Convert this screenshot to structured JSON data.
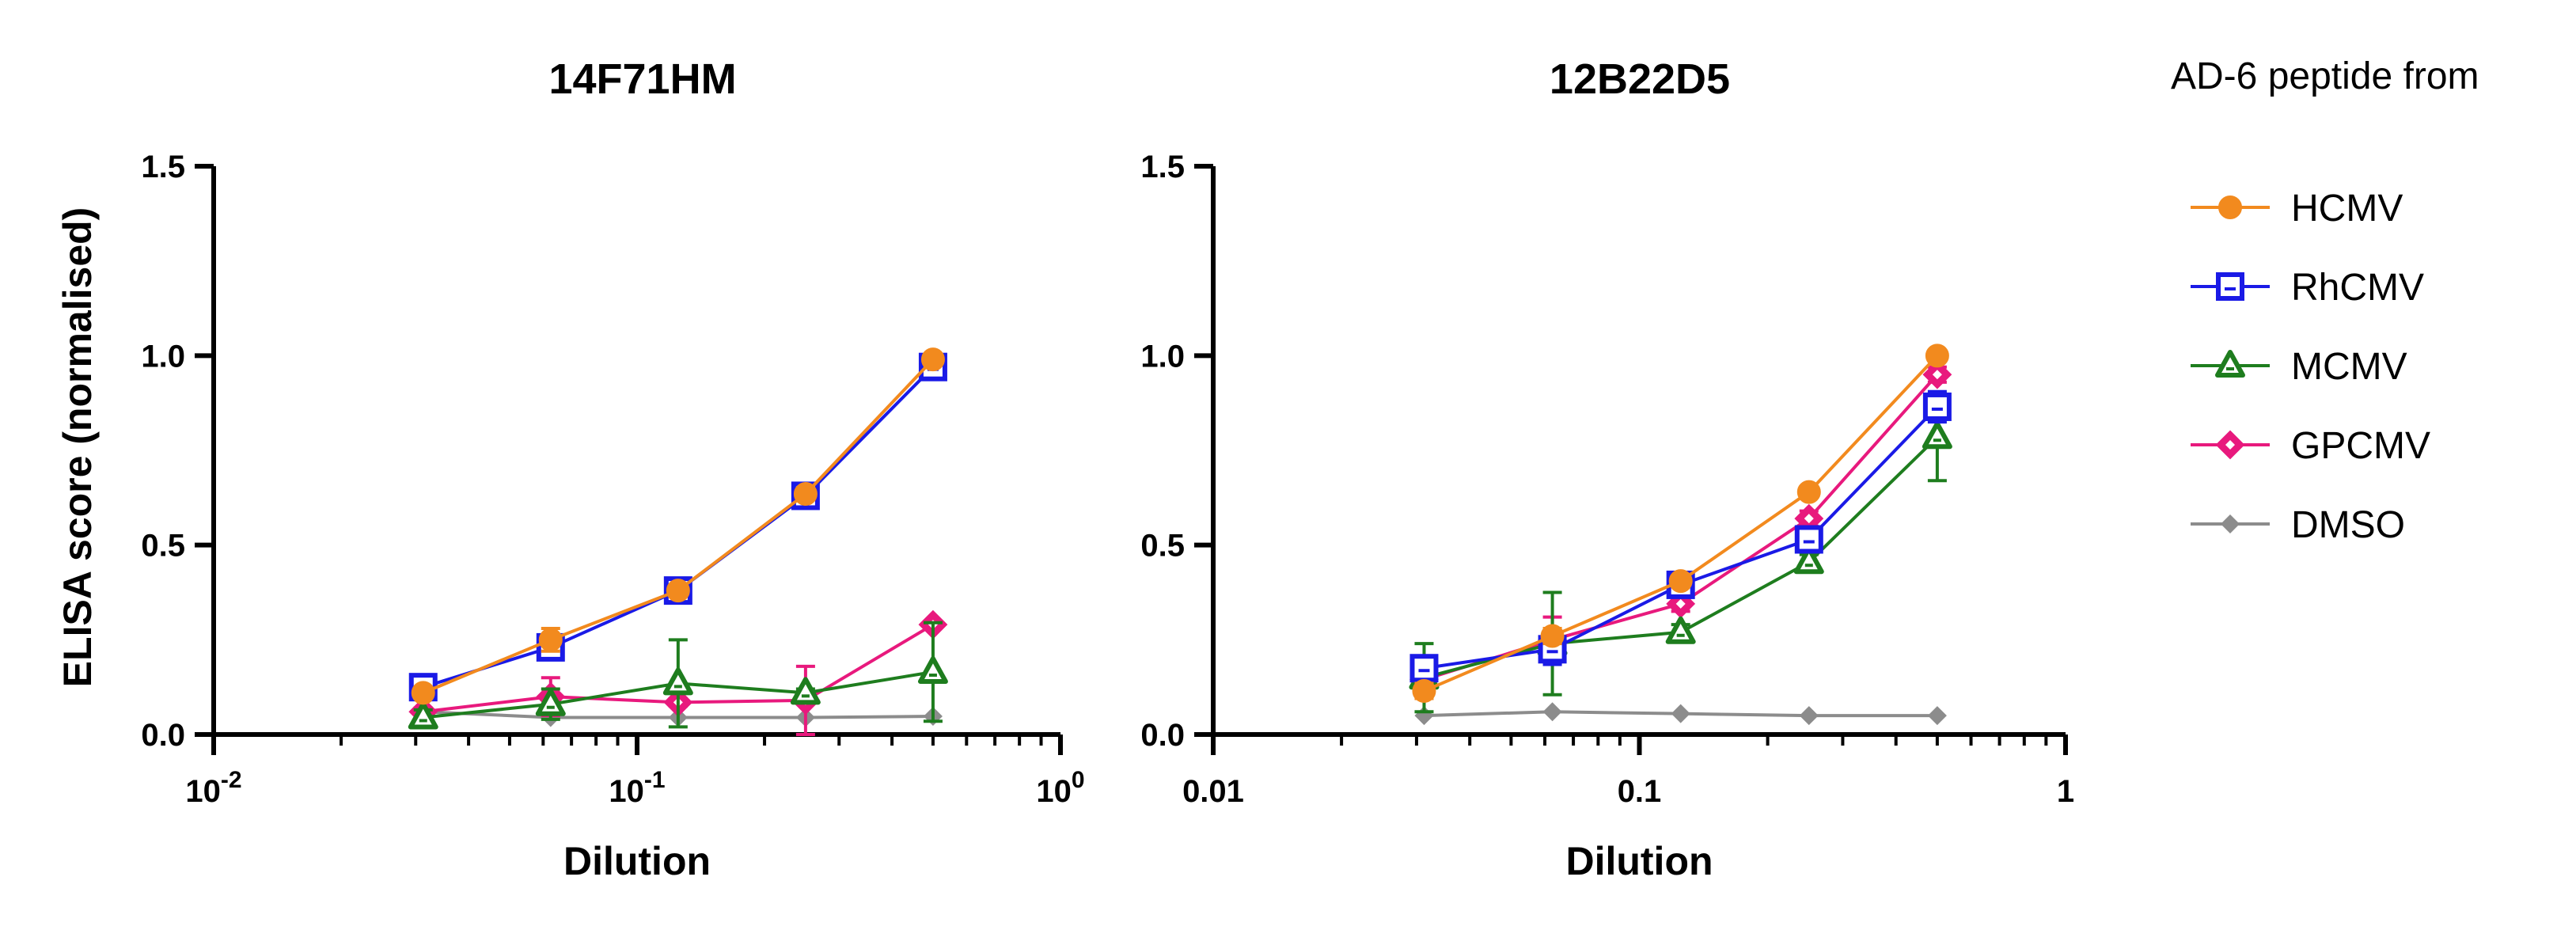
{
  "y_axis_label": "ELISA score (normalised)",
  "legend": {
    "title": "AD-6 peptide from",
    "entries": [
      {
        "name": "HCMV",
        "color": "#F28A1E",
        "marker": "circle"
      },
      {
        "name": "RhCMV",
        "color": "#1A1AE6",
        "marker": "square"
      },
      {
        "name": "MCMV",
        "color": "#1E7D1E",
        "marker": "triangle"
      },
      {
        "name": "GPCMV",
        "color": "#E8197D",
        "marker": "diamond"
      },
      {
        "name": "DMSO",
        "color": "#8C8C8C",
        "marker": "small-diamond"
      }
    ]
  },
  "chart_data": [
    {
      "type": "line",
      "title": "14F71HM",
      "xlabel": "Dilution",
      "ylabel": "ELISA score (normalised)",
      "xscale": "log",
      "xlim": [
        0.01,
        1
      ],
      "ylim": [
        0,
        1.5
      ],
      "xticks": [
        {
          "value": 0.01,
          "base": "10",
          "exp": "-2"
        },
        {
          "value": 0.1,
          "base": "10",
          "exp": "-1"
        },
        {
          "value": 1,
          "base": "10",
          "exp": "0"
        }
      ],
      "yticks": [
        {
          "value": 0,
          "label": "0.0"
        },
        {
          "value": 0.5,
          "label": "0.5"
        },
        {
          "value": 1,
          "label": "1.0"
        },
        {
          "value": 1.5,
          "label": "1.5"
        }
      ],
      "x": [
        0.03125,
        0.0625,
        0.125,
        0.25,
        0.5
      ],
      "series": [
        {
          "name": "HCMV",
          "values": [
            0.11,
            0.25,
            0.38,
            0.635,
            0.99
          ],
          "error": [
            0,
            0.03,
            0,
            0,
            0
          ]
        },
        {
          "name": "RhCMV",
          "values": [
            0.125,
            0.23,
            0.38,
            0.63,
            0.97
          ],
          "error": [
            0.02,
            0.03,
            0.02,
            0.02,
            0.02
          ]
        },
        {
          "name": "MCMV",
          "values": [
            0.045,
            0.08,
            0.135,
            0.11,
            0.165
          ],
          "error": [
            0.02,
            0.04,
            0.115,
            0.01,
            0.13
          ]
        },
        {
          "name": "GPCMV",
          "values": [
            0.06,
            0.1,
            0.085,
            0.09,
            0.29
          ],
          "error": [
            0.01,
            0.05,
            0.01,
            0.09,
            0
          ]
        },
        {
          "name": "DMSO",
          "values": [
            0.06,
            0.045,
            0.045,
            0.045,
            0.048
          ],
          "error": [
            0,
            0,
            0,
            0,
            0
          ]
        }
      ]
    },
    {
      "type": "line",
      "title": "12B22D5",
      "xlabel": "Dilution",
      "ylabel": "",
      "xscale": "log",
      "xlim": [
        0.01,
        1
      ],
      "ylim": [
        0,
        1.5
      ],
      "xticks": [
        {
          "value": 0.01,
          "base": "0.01",
          "exp": ""
        },
        {
          "value": 0.1,
          "base": "0.1",
          "exp": ""
        },
        {
          "value": 1,
          "base": "1",
          "exp": ""
        }
      ],
      "yticks": [
        {
          "value": 0,
          "label": "0.0"
        },
        {
          "value": 0.5,
          "label": "0.5"
        },
        {
          "value": 1,
          "label": "1.0"
        },
        {
          "value": 1.5,
          "label": "1.5"
        }
      ],
      "x": [
        0.03125,
        0.0625,
        0.125,
        0.25,
        0.5
      ],
      "series": [
        {
          "name": "HCMV",
          "values": [
            0.115,
            0.26,
            0.405,
            0.64,
            1.0
          ],
          "error": [
            0.02,
            0.02,
            0.01,
            0.01,
            0
          ]
        },
        {
          "name": "RhCMV",
          "values": [
            0.175,
            0.225,
            0.395,
            0.515,
            0.865
          ],
          "error": [
            0.02,
            0.04,
            0.02,
            0.03,
            0.04
          ]
        },
        {
          "name": "MCMV",
          "values": [
            0.15,
            0.24,
            0.27,
            0.455,
            0.785
          ],
          "error": [
            0.09,
            0.135,
            0.02,
            0.02,
            0.115
          ]
        },
        {
          "name": "GPCMV",
          "values": [
            0.145,
            0.25,
            0.345,
            0.57,
            0.95
          ],
          "error": [
            0.01,
            0.06,
            0.02,
            0.02,
            0.02
          ]
        },
        {
          "name": "DMSO",
          "values": [
            0.05,
            0.06,
            0.055,
            0.05,
            0.05
          ],
          "error": [
            0,
            0,
            0,
            0,
            0
          ]
        }
      ]
    }
  ]
}
